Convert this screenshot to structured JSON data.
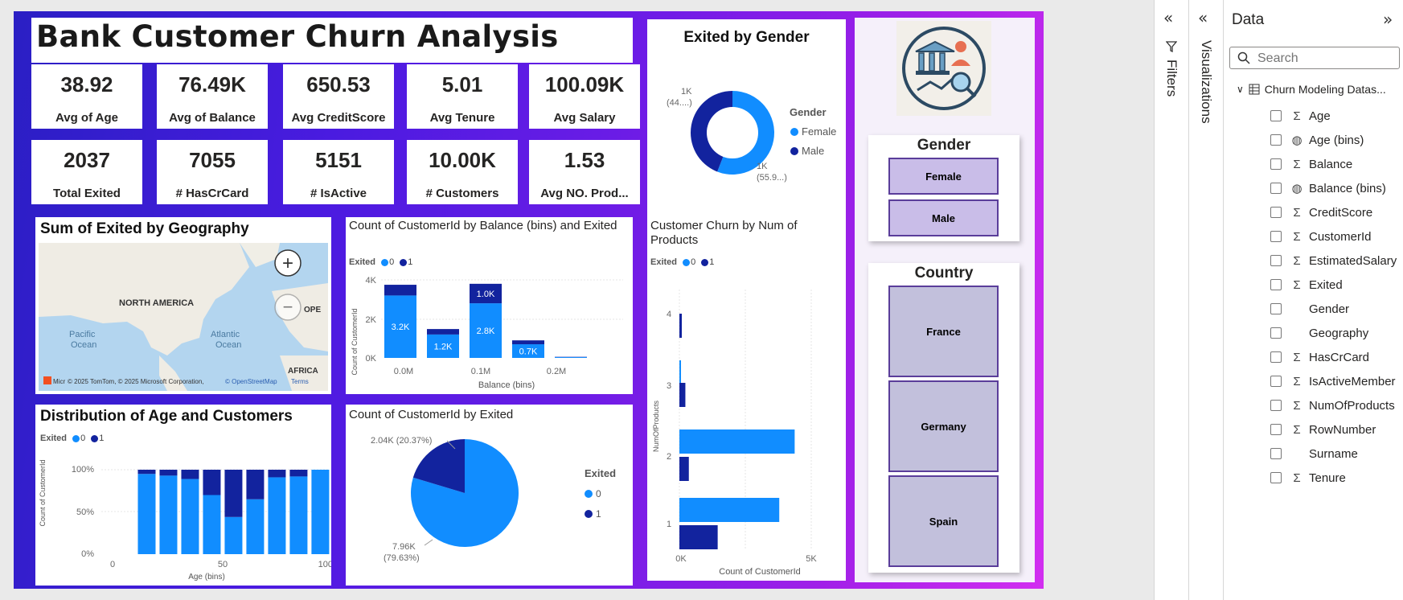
{
  "report": {
    "title": "Bank Customer Churn Analysis",
    "kpis": [
      {
        "value": "38.92",
        "label": "Avg of Age"
      },
      {
        "value": "76.49K",
        "label": "Avg of Balance"
      },
      {
        "value": "650.53",
        "label": "Avg CreditScore"
      },
      {
        "value": "5.01",
        "label": "Avg Tenure"
      },
      {
        "value": "100.09K",
        "label": "Avg Salary"
      },
      {
        "value": "2037",
        "label": "Total Exited"
      },
      {
        "value": "7055",
        "label": "# HasCrCard"
      },
      {
        "value": "5151",
        "label": "# IsActive"
      },
      {
        "value": "10.00K",
        "label": "# Customers"
      },
      {
        "value": "1.53",
        "label": "Avg NO. Prod..."
      }
    ],
    "colors": {
      "exited_0": "#118dff",
      "exited_1": "#12239e"
    }
  },
  "gender_chart": {
    "title": "Exited by Gender",
    "legend_title": "Gender",
    "legend": [
      "Female",
      "Male"
    ],
    "label_male": "1K",
    "label_male_pct": "(44....)",
    "label_female": "1K",
    "label_female_pct": "(55.9...)",
    "chart_data": {
      "type": "donut",
      "categories": [
        "Female",
        "Male"
      ],
      "values": [
        1139,
        898
      ]
    }
  },
  "map": {
    "title": "Sum of Exited by Geography",
    "labels": {
      "na": "NORTH AMERICA",
      "pacific": "Pacific",
      "pacific2": "Ocean",
      "atlantic": "Atlantic",
      "atlantic2": "Ocean",
      "europe": "OPE",
      "africa": "AFRICA"
    },
    "attribution": "© 2025 TomTom, © 2025 Microsoft Corporation,",
    "osm": "© OpenStreetMap",
    "terms": "Terms",
    "ms_label": "Micr",
    "zoom_in": "+",
    "zoom_out": "−"
  },
  "balance_chart": {
    "title": "Count of CustomerId by Balance (bins) and Exited",
    "legend_title": "Exited",
    "legend": [
      "0",
      "1"
    ],
    "ylabel": "Count of CustomerId",
    "xlabel": "Balance (bins)",
    "yticks": [
      "0K",
      "2K",
      "4K"
    ],
    "xticks": [
      "0.0M",
      "0.1M",
      "0.2M"
    ],
    "chart_data": {
      "type": "bar",
      "stacked": true,
      "categories": [
        "0.00M",
        "0.05M",
        "0.10M",
        "0.15M",
        "0.20M"
      ],
      "series": [
        {
          "name": "0",
          "values": [
            3200,
            1200,
            2800,
            700,
            40
          ],
          "labels": [
            "3.2K",
            "1.2K",
            "2.8K",
            "0.7K",
            ""
          ]
        },
        {
          "name": "1",
          "values": [
            550,
            280,
            1000,
            200,
            15
          ],
          "labels": [
            "",
            "",
            "1.0K",
            "",
            ""
          ]
        }
      ],
      "ylim": [
        0,
        4000
      ]
    }
  },
  "products_chart": {
    "title": "Customer Churn by Num of Products",
    "legend_title": "Exited",
    "legend": [
      "0",
      "1"
    ],
    "ylabel": "NumOfProducts",
    "xlabel": "Count of CustomerId",
    "xticks": [
      "0K",
      "5K"
    ],
    "chart_data": {
      "type": "bar",
      "orientation": "horizontal",
      "categories": [
        "1",
        "2",
        "3",
        "4"
      ],
      "series": [
        {
          "name": "0",
          "values": [
            3675,
            4242,
            46,
            0
          ]
        },
        {
          "name": "1",
          "values": [
            1409,
            348,
            220,
            60
          ]
        }
      ],
      "xlim": [
        0,
        6000
      ]
    }
  },
  "age_chart": {
    "title": "Distribution of Age and Customers",
    "legend_title": "Exited",
    "legend": [
      "0",
      "1"
    ],
    "ylabel": "Count of CustomerId",
    "xlabel": "Age (bins)",
    "yticks": [
      "0%",
      "50%",
      "100%"
    ],
    "xticks": [
      "0",
      "50",
      "100"
    ],
    "chart_data": {
      "type": "bar",
      "stacked_percent": true,
      "categories": [
        10,
        20,
        30,
        40,
        50,
        60,
        70,
        80,
        90
      ],
      "series": [
        {
          "name": "0",
          "values": [
            95,
            93,
            89,
            70,
            44,
            65,
            91,
            92,
            100
          ]
        },
        {
          "name": "1",
          "values": [
            5,
            7,
            11,
            30,
            56,
            35,
            9,
            8,
            0
          ]
        }
      ],
      "xlim": [
        0,
        100
      ],
      "ylim": [
        0,
        100
      ]
    }
  },
  "pie_chart": {
    "title": "Count of CustomerId by Exited",
    "legend_title": "Exited",
    "legend": [
      "0",
      "1"
    ],
    "label_1": "2.04K (20.37%)",
    "label_0a": "7.96K",
    "label_0b": "(79.63%)",
    "chart_data": {
      "type": "pie",
      "categories": [
        "0",
        "1"
      ],
      "values": [
        7963,
        2037
      ]
    }
  },
  "slicers": {
    "gender": {
      "title": "Gender",
      "items": [
        "Female",
        "Male"
      ]
    },
    "country": {
      "title": "Country",
      "items": [
        "France",
        "Germany",
        "Spain"
      ]
    }
  },
  "panes": {
    "filters_label": "Filters",
    "visualizations_label": "Visualizations",
    "data_title": "Data",
    "search_placeholder": "Search",
    "table_name": "Churn Modeling Datas...",
    "fields": [
      {
        "name": "Age",
        "kind": "sigma"
      },
      {
        "name": "Age (bins)",
        "kind": "bins"
      },
      {
        "name": "Balance",
        "kind": "sigma"
      },
      {
        "name": "Balance (bins)",
        "kind": "bins"
      },
      {
        "name": "CreditScore",
        "kind": "sigma"
      },
      {
        "name": "CustomerId",
        "kind": "sigma"
      },
      {
        "name": "EstimatedSalary",
        "kind": "sigma"
      },
      {
        "name": "Exited",
        "kind": "sigma"
      },
      {
        "name": "Gender",
        "kind": "none"
      },
      {
        "name": "Geography",
        "kind": "none"
      },
      {
        "name": "HasCrCard",
        "kind": "sigma"
      },
      {
        "name": "IsActiveMember",
        "kind": "sigma"
      },
      {
        "name": "NumOfProducts",
        "kind": "sigma"
      },
      {
        "name": "RowNumber",
        "kind": "sigma"
      },
      {
        "name": "Surname",
        "kind": "none"
      },
      {
        "name": "Tenure",
        "kind": "sigma"
      }
    ]
  }
}
